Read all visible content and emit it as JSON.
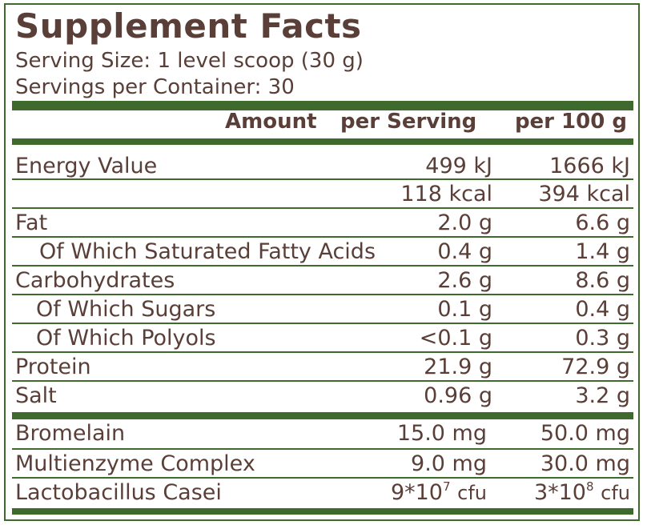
{
  "title": "Supplement Facts",
  "serving_size": "Serving Size: 1 level scoop (30 g)",
  "servings_per_container": "Servings per Container: 30",
  "header": {
    "amount": "Amount",
    "per_serving": "per Serving",
    "per_100g": "per 100 g"
  },
  "rows": [
    {
      "label": "Energy Value",
      "serving": "499 kJ",
      "per100": "1666 kJ"
    },
    {
      "label": "",
      "serving": "118 kcal",
      "per100": "394 kcal"
    },
    {
      "label": "Fat",
      "serving": "2.0 g",
      "per100": "6.6 g"
    },
    {
      "label": "Of Which Saturated Fatty Acids",
      "serving": "0.4 g",
      "per100": "1.4 g"
    },
    {
      "label": "Carbohydrates",
      "serving": "2.6 g",
      "per100": "8.6 g"
    },
    {
      "label": "Of Which Sugars",
      "serving": "0.1 g",
      "per100": "0.4 g"
    },
    {
      "label": "Of Which Polyols",
      "serving": "<0.1 g",
      "per100": "0.3 g"
    },
    {
      "label": "Protein",
      "serving": "21.9 g",
      "per100": "72.9 g"
    },
    {
      "label": "Salt",
      "serving": "0.96 g",
      "per100": "3.2 g"
    }
  ],
  "extras": [
    {
      "label": "Bromelain",
      "serving": "15.0 mg",
      "per100": "50.0 mg"
    },
    {
      "label": "Multienzyme Complex",
      "serving": "9.0 mg",
      "per100": "30.0 mg"
    },
    {
      "label": "Lactobacillus Casei",
      "serving_base": "9*10",
      "serving_exp": "7",
      "serving_unit": "cfu",
      "per100_base": "3*10",
      "per100_exp": "8",
      "per100_unit": "cfu"
    }
  ],
  "colors": {
    "accent": "#3e6a2e",
    "text": "#5a3f38"
  }
}
